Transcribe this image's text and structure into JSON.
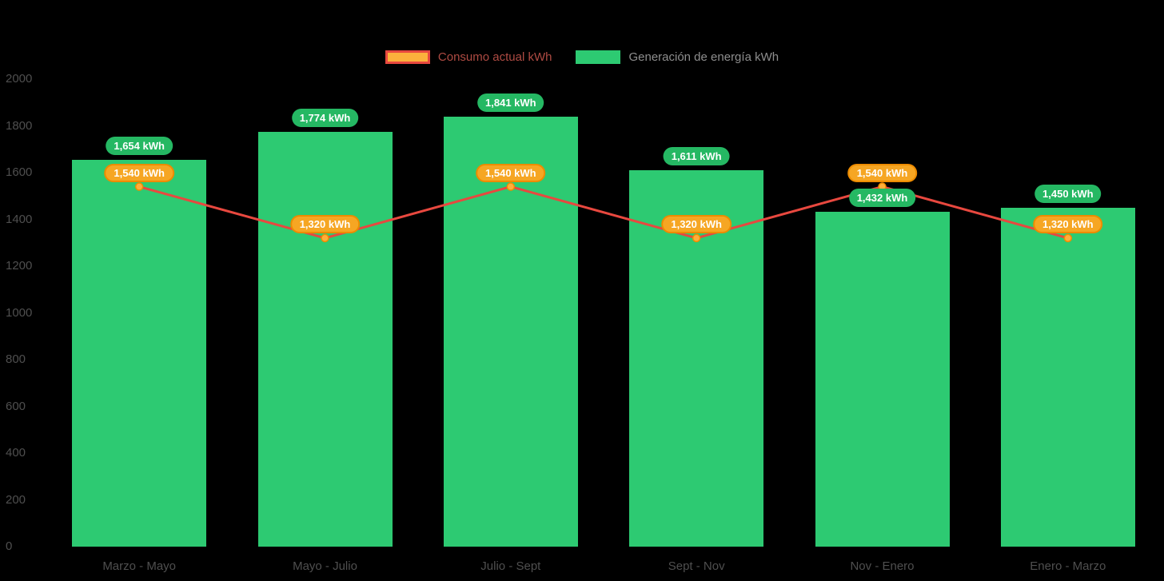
{
  "legend": {
    "consumption_label": "Consumo actual kWh",
    "generation_label": "Generación de energía kWh"
  },
  "colors": {
    "background": "#000000",
    "bar": "#2DCA72",
    "bar_label_bg": "#25B863",
    "line": "#E8483F",
    "marker_fill": "#FFAE3B",
    "marker_stroke": "#F08C00",
    "consumption_label_bg": "#F6A623",
    "consumption_label_border": "#ED8B00",
    "axis_text": "#4F4F4F",
    "label_text": "#FFFFFF",
    "legend_consumption_text": "#AF4B43",
    "legend_generation_text": "#8E8E8E",
    "legend_consumption_swatch_fill": "#FBB13C",
    "legend_consumption_swatch_border": "#E8483F"
  },
  "chart_data": {
    "type": "bar",
    "categories": [
      "Marzo - Mayo",
      "Mayo - Julio",
      "Julio - Sept",
      "Sept - Nov",
      "Nov - Enero",
      "Enero - Marzo"
    ],
    "series": [
      {
        "name": "Generación de energía kWh",
        "chart_type": "bar",
        "values": [
          1654,
          1774,
          1841,
          1611,
          1432,
          1450
        ],
        "labels": [
          "1,654 kWh",
          "1,774 kWh",
          "1,841 kWh",
          "1,611 kWh",
          "1,432 kWh",
          "1,450 kWh"
        ]
      },
      {
        "name": "Consumo actual kWh",
        "chart_type": "line",
        "values": [
          1540,
          1320,
          1540,
          1320,
          1540,
          1320
        ],
        "labels": [
          "1,540 kWh",
          "1,320 kWh",
          "1,540 kWh",
          "1,320 kWh",
          "1,540 kWh",
          "1,320 kWh"
        ]
      }
    ],
    "ylim": [
      0,
      2000
    ],
    "ytick_step": 200,
    "ytick_labels": [
      "2000",
      "1800",
      "1600",
      "1400",
      "1200",
      "1000",
      "800",
      "600",
      "400",
      "200",
      "0"
    ],
    "grid": false,
    "legend_position": "top"
  }
}
